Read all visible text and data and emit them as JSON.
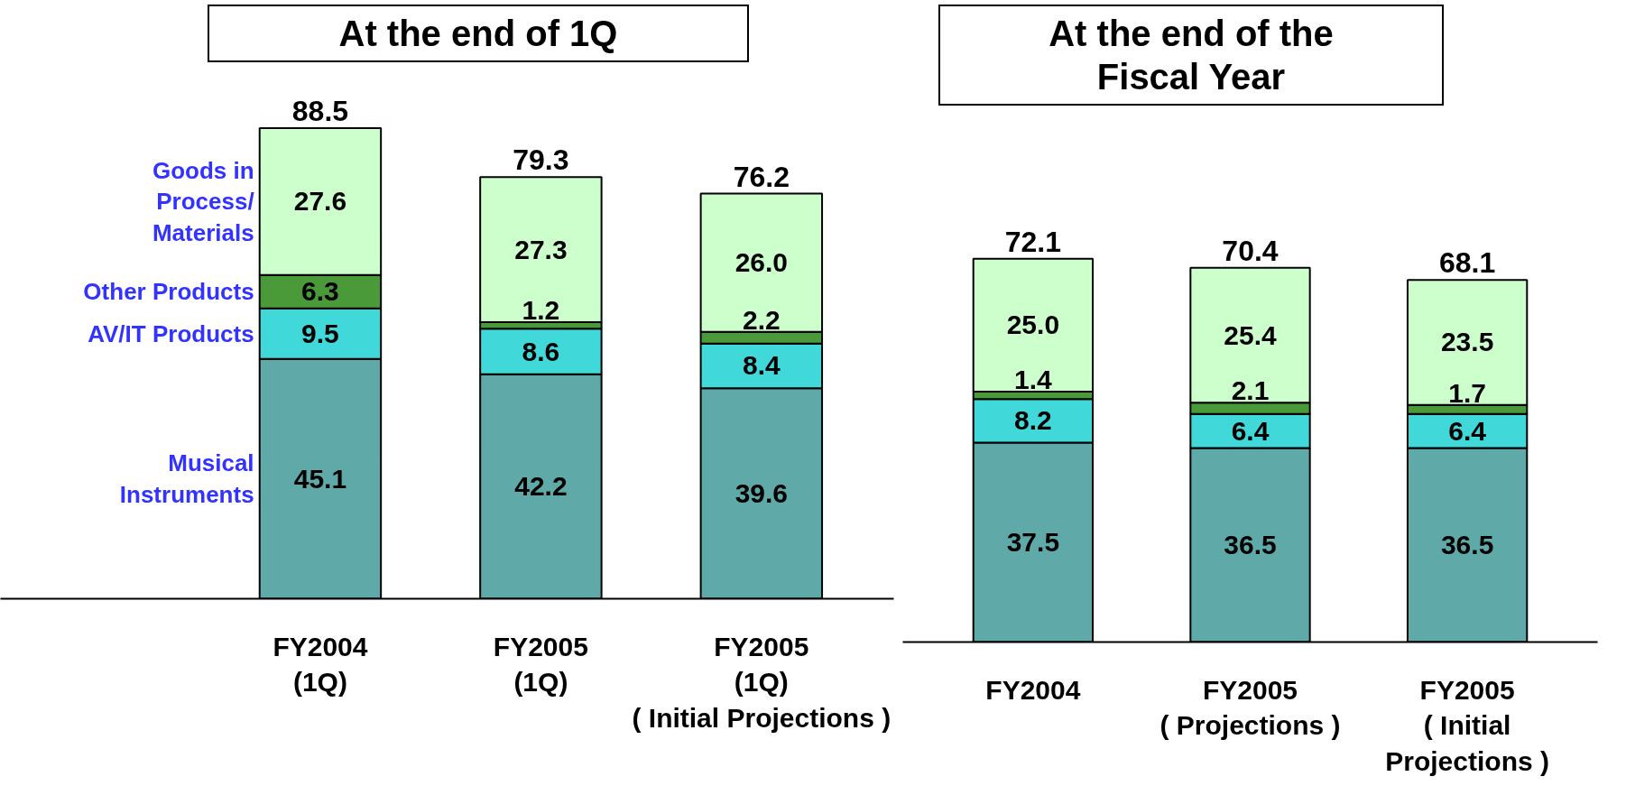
{
  "chart_data": [
    {
      "type": "bar",
      "title": "At the end of 1Q",
      "stacked": true,
      "categories": [
        "FY2004\n(1Q)",
        "FY2005\n(1Q)",
        "FY2005\n(1Q)\n( Initial Projections )"
      ],
      "series": [
        {
          "name": "Musical\nInstruments",
          "color": "#5fa9a9",
          "values": [
            45.1,
            42.2,
            39.6
          ],
          "value_labels": [
            "45.1",
            "42.2",
            "39.6"
          ]
        },
        {
          "name": "AV/IT Products",
          "color": "#40d8d8",
          "values": [
            9.5,
            8.6,
            8.4
          ],
          "value_labels": [
            "9.5",
            "8.6",
            "8.4"
          ]
        },
        {
          "name": "Other Products",
          "color": "#4a9a3a",
          "values": [
            6.3,
            1.2,
            2.2
          ],
          "value_labels": [
            "6.3",
            "1.2",
            "2.2"
          ]
        },
        {
          "name": "Goods in\nProcess/\nMaterials",
          "color": "#ccffcc",
          "values": [
            27.6,
            27.3,
            26.0
          ],
          "value_labels": [
            "27.6",
            "27.3",
            "26.0"
          ]
        }
      ],
      "totals": [
        "88.5",
        "79.3",
        "76.2"
      ]
    },
    {
      "type": "bar",
      "title": "At the end of the\nFiscal Year",
      "stacked": true,
      "categories": [
        "FY2004",
        "FY2005\n( Projections )",
        "FY2005\n( Initial\nProjections )"
      ],
      "series": [
        {
          "color": "#5fa9a9",
          "values": [
            37.5,
            36.5,
            36.5
          ],
          "value_labels": [
            "37.5",
            "36.5",
            "36.5"
          ]
        },
        {
          "color": "#40d8d8",
          "values": [
            8.2,
            6.4,
            6.4
          ],
          "value_labels": [
            "8.2",
            "6.4",
            "6.4"
          ]
        },
        {
          "color": "#4a9a3a",
          "values": [
            1.4,
            2.1,
            1.7
          ],
          "value_labels": [
            "1.4",
            "2.1",
            "1.7"
          ]
        },
        {
          "color": "#ccffcc",
          "values": [
            25.0,
            25.4,
            23.5
          ],
          "value_labels": [
            "25.0",
            "25.4",
            "23.5"
          ]
        }
      ],
      "totals": [
        "72.1",
        "70.4",
        "68.1"
      ]
    }
  ]
}
